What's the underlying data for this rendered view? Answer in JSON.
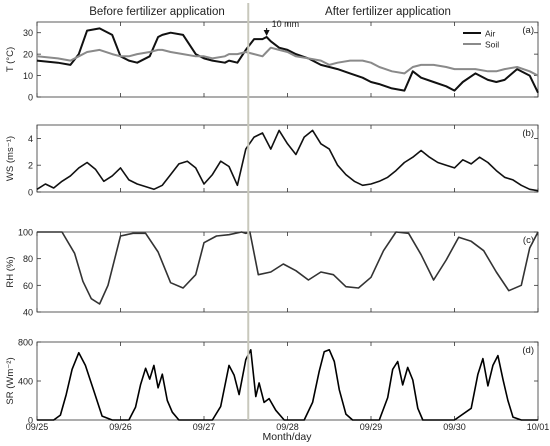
{
  "figure": {
    "header_left": "Before fertilizer application",
    "header_right": "After fertilizer application",
    "xlabel": "Month/day",
    "x_ticks": [
      "09/25",
      "09/26",
      "09/27",
      "09/28",
      "09/29",
      "09/30",
      "10/01"
    ],
    "divider_x": 2.53
  },
  "chart_data": [
    {
      "type": "line",
      "panel_label": "(a)",
      "ylabel": "T (°C)",
      "ylim": [
        0,
        35
      ],
      "yticks": [
        0,
        10,
        20,
        30
      ],
      "annotation": {
        "text": "10 mm",
        "x": 2.75,
        "y": 28
      },
      "legend": "top-right",
      "x": [
        0,
        0.25,
        0.4,
        0.5,
        0.6,
        0.75,
        0.9,
        1.0,
        1.1,
        1.2,
        1.35,
        1.45,
        1.5,
        1.6,
        1.75,
        1.9,
        2.0,
        2.1,
        2.25,
        2.3,
        2.4,
        2.5,
        2.6,
        2.7,
        2.75,
        2.8,
        2.9,
        3.0,
        3.1,
        3.25,
        3.4,
        3.5,
        3.6,
        3.75,
        3.9,
        4.0,
        4.1,
        4.25,
        4.4,
        4.5,
        4.6,
        4.75,
        4.9,
        5.0,
        5.1,
        5.25,
        5.4,
        5.5,
        5.6,
        5.75,
        5.9,
        6.0
      ],
      "series": [
        {
          "name": "Air",
          "color": "#111111",
          "values": [
            17,
            16,
            15,
            20,
            31,
            32,
            29,
            19,
            17,
            16,
            19,
            28,
            29,
            30,
            29,
            20,
            18,
            17,
            16,
            17,
            16,
            22,
            27,
            27,
            28,
            26,
            23,
            22,
            20,
            18,
            15,
            14,
            13,
            11,
            9,
            7,
            6,
            4,
            3,
            12,
            9,
            7,
            5,
            3,
            7,
            11,
            8,
            7,
            8,
            13,
            10,
            2
          ]
        },
        {
          "name": "Soil",
          "color": "#8a8a8a",
          "values": [
            19,
            18,
            17,
            19,
            21,
            22,
            20,
            19,
            19,
            20,
            21,
            22,
            22,
            21,
            20,
            19,
            19,
            18,
            19,
            20,
            20,
            21,
            20,
            19,
            21,
            23,
            22,
            21,
            19,
            18,
            17,
            15,
            16,
            17,
            17,
            16,
            14,
            12,
            11,
            14,
            15,
            15,
            14,
            13,
            13,
            13,
            12,
            12,
            13,
            14,
            12,
            10
          ]
        }
      ]
    },
    {
      "type": "line",
      "panel_label": "(b)",
      "ylabel": "WS (ms⁻¹)",
      "ylim": [
        0,
        5
      ],
      "yticks": [
        0,
        2,
        4
      ],
      "x": [
        0,
        0.1,
        0.2,
        0.3,
        0.4,
        0.5,
        0.6,
        0.7,
        0.8,
        0.9,
        1.0,
        1.1,
        1.2,
        1.3,
        1.4,
        1.5,
        1.6,
        1.7,
        1.8,
        1.9,
        2.0,
        2.1,
        2.2,
        2.3,
        2.4,
        2.5,
        2.6,
        2.7,
        2.8,
        2.9,
        3.0,
        3.1,
        3.2,
        3.3,
        3.4,
        3.5,
        3.6,
        3.7,
        3.8,
        3.9,
        4.0,
        4.1,
        4.2,
        4.3,
        4.4,
        4.5,
        4.6,
        4.7,
        4.8,
        4.9,
        5.0,
        5.1,
        5.2,
        5.3,
        5.4,
        5.5,
        5.6,
        5.7,
        5.8,
        5.9,
        6.0
      ],
      "series": [
        {
          "name": "WS",
          "color": "#111111",
          "values": [
            0.2,
            0.6,
            0.3,
            0.8,
            1.2,
            1.8,
            2.2,
            1.7,
            0.8,
            1.2,
            1.8,
            0.9,
            0.6,
            0.4,
            0.2,
            0.5,
            1.3,
            2.1,
            2.3,
            1.8,
            0.6,
            1.3,
            2.3,
            1.9,
            0.5,
            3.2,
            4.1,
            4.4,
            3.2,
            4.6,
            3.6,
            2.8,
            4.1,
            4.6,
            3.6,
            3.2,
            2.0,
            1.3,
            0.8,
            0.5,
            0.6,
            0.8,
            1.1,
            1.6,
            2.2,
            2.6,
            3.1,
            2.6,
            2.2,
            2.0,
            1.8,
            2.4,
            2.1,
            2.6,
            2.2,
            1.6,
            1.1,
            0.9,
            0.5,
            0.2,
            0.1
          ]
        }
      ]
    },
    {
      "type": "line",
      "panel_label": "(c)",
      "ylabel": "RH (%)",
      "ylim": [
        40,
        100
      ],
      "yticks": [
        40,
        60,
        80,
        100
      ],
      "x": [
        0,
        0.2,
        0.3,
        0.45,
        0.55,
        0.65,
        0.75,
        0.85,
        1.0,
        1.15,
        1.3,
        1.45,
        1.6,
        1.75,
        1.9,
        2.0,
        2.15,
        2.3,
        2.45,
        2.5,
        2.55,
        2.65,
        2.8,
        2.95,
        3.1,
        3.25,
        3.4,
        3.55,
        3.7,
        3.85,
        4.0,
        4.15,
        4.3,
        4.45,
        4.6,
        4.75,
        4.9,
        5.05,
        5.2,
        5.35,
        5.5,
        5.65,
        5.8,
        5.9,
        6.0
      ],
      "series": [
        {
          "name": "RH",
          "color": "#333333",
          "values": [
            100,
            100,
            100,
            84,
            63,
            50,
            46,
            60,
            97,
            99,
            99,
            85,
            62,
            58,
            68,
            92,
            97,
            98,
            100,
            99,
            100,
            68,
            70,
            76,
            71,
            64,
            70,
            68,
            59,
            58,
            66,
            86,
            100,
            99,
            83,
            64,
            79,
            96,
            93,
            86,
            70,
            56,
            60,
            88,
            100
          ]
        }
      ]
    },
    {
      "type": "line",
      "panel_label": "(d)",
      "ylabel": "SR (Wm⁻²)",
      "ylim": [
        0,
        800
      ],
      "yticks": [
        0,
        400,
        800
      ],
      "x": [
        0,
        0.2,
        0.28,
        0.35,
        0.42,
        0.5,
        0.58,
        0.68,
        0.78,
        0.9,
        1.1,
        1.18,
        1.24,
        1.3,
        1.35,
        1.4,
        1.45,
        1.5,
        1.56,
        1.62,
        1.7,
        1.9,
        2.1,
        2.2,
        2.3,
        2.36,
        2.42,
        2.5,
        2.56,
        2.62,
        2.66,
        2.72,
        2.78,
        2.86,
        2.96,
        3.05,
        3.2,
        3.3,
        3.38,
        3.44,
        3.5,
        3.56,
        3.62,
        3.7,
        3.78,
        3.9,
        4.1,
        4.2,
        4.26,
        4.32,
        4.38,
        4.44,
        4.5,
        4.56,
        4.62,
        4.7,
        4.8,
        5.0,
        5.2,
        5.28,
        5.34,
        5.4,
        5.46,
        5.52,
        5.58,
        5.64,
        5.7,
        5.8,
        6.0
      ],
      "series": [
        {
          "name": "SR",
          "color": "#000000",
          "values": [
            0,
            0,
            50,
            260,
            520,
            690,
            560,
            300,
            40,
            0,
            0,
            130,
            360,
            530,
            420,
            560,
            330,
            470,
            200,
            80,
            0,
            0,
            0,
            140,
            560,
            460,
            260,
            620,
            720,
            240,
            380,
            180,
            220,
            100,
            0,
            0,
            0,
            180,
            500,
            700,
            720,
            600,
            310,
            60,
            0,
            0,
            0,
            230,
            520,
            600,
            360,
            540,
            410,
            120,
            0,
            0,
            0,
            0,
            120,
            470,
            630,
            350,
            560,
            660,
            420,
            200,
            30,
            0,
            0
          ]
        }
      ]
    }
  ]
}
